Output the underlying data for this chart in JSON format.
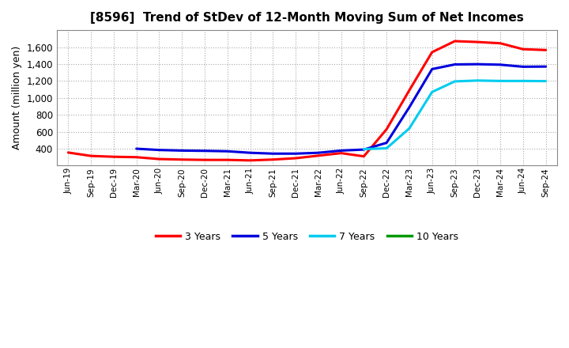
{
  "title": "[8596]  Trend of StDev of 12-Month Moving Sum of Net Incomes",
  "ylabel": "Amount (million yen)",
  "background_color": "#ffffff",
  "grid_color": "#aaaaaa",
  "x_labels": [
    "Jun-19",
    "Sep-19",
    "Dec-19",
    "Mar-20",
    "Jun-20",
    "Sep-20",
    "Dec-20",
    "Mar-21",
    "Jun-21",
    "Sep-21",
    "Dec-21",
    "Mar-22",
    "Jun-22",
    "Sep-22",
    "Dec-22",
    "Mar-23",
    "Jun-23",
    "Sep-23",
    "Dec-23",
    "Mar-24",
    "Jun-24",
    "Sep-24"
  ],
  "series_order": [
    "3 Years",
    "5 Years",
    "7 Years",
    "10 Years"
  ],
  "series": {
    "3 Years": {
      "color": "#ff0000",
      "values": [
        355,
        315,
        305,
        300,
        278,
        272,
        268,
        268,
        262,
        272,
        288,
        318,
        348,
        310,
        630,
        1090,
        1540,
        1670,
        1660,
        1645,
        1575,
        1565
      ]
    },
    "5 Years": {
      "color": "#0000dd",
      "values": [
        null,
        null,
        null,
        400,
        385,
        378,
        375,
        370,
        352,
        342,
        342,
        352,
        378,
        390,
        470,
        890,
        1340,
        1395,
        1398,
        1392,
        1368,
        1370
      ]
    },
    "7 Years": {
      "color": "#00ccee",
      "values": [
        null,
        null,
        null,
        null,
        null,
        null,
        null,
        null,
        null,
        null,
        null,
        null,
        null,
        395,
        405,
        640,
        1070,
        1195,
        1205,
        1200,
        1200,
        1198
      ]
    },
    "10 Years": {
      "color": "#009900",
      "values": [
        null,
        null,
        null,
        null,
        null,
        null,
        null,
        null,
        null,
        null,
        null,
        null,
        null,
        null,
        null,
        null,
        null,
        null,
        null,
        null,
        null,
        null
      ]
    }
  },
  "ylim": [
    200,
    1800
  ],
  "yticks": [
    400,
    600,
    800,
    1000,
    1200,
    1400,
    1600
  ],
  "legend_labels": [
    "3 Years",
    "5 Years",
    "7 Years",
    "10 Years"
  ],
  "legend_colors": [
    "#ff0000",
    "#0000dd",
    "#00ccee",
    "#009900"
  ]
}
